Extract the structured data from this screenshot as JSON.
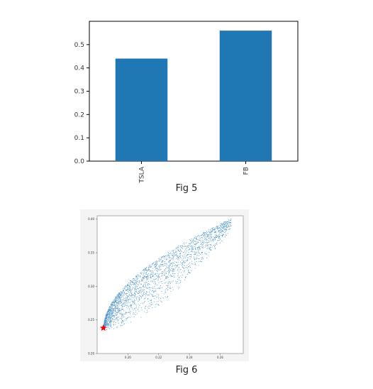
{
  "chart_data": [
    {
      "type": "bar",
      "categories": [
        "TSLA",
        "FB"
      ],
      "values": [
        0.44,
        0.56
      ],
      "ylim": [
        0,
        0.6
      ],
      "yticks": [
        "0.0",
        "0.1",
        "0.2",
        "0.3",
        "0.4",
        "0.5"
      ],
      "bar_color": "#1f77b4",
      "grid": false,
      "caption": "Fig 5"
    },
    {
      "type": "scatter",
      "xlim": [
        0.18,
        0.275
      ],
      "ylim": [
        0.2,
        0.405
      ],
      "xticks": [
        "0.20",
        "0.22",
        "0.24",
        "0.26"
      ],
      "yticks": [
        "0.20",
        "0.25",
        "0.30",
        "0.35",
        "0.40"
      ],
      "point_color": "#1f77b4",
      "marker": {
        "x": 0.184,
        "y": 0.238,
        "color": "#ff0000",
        "shape": "star"
      },
      "grid": false,
      "caption": "Fig 6"
    }
  ]
}
